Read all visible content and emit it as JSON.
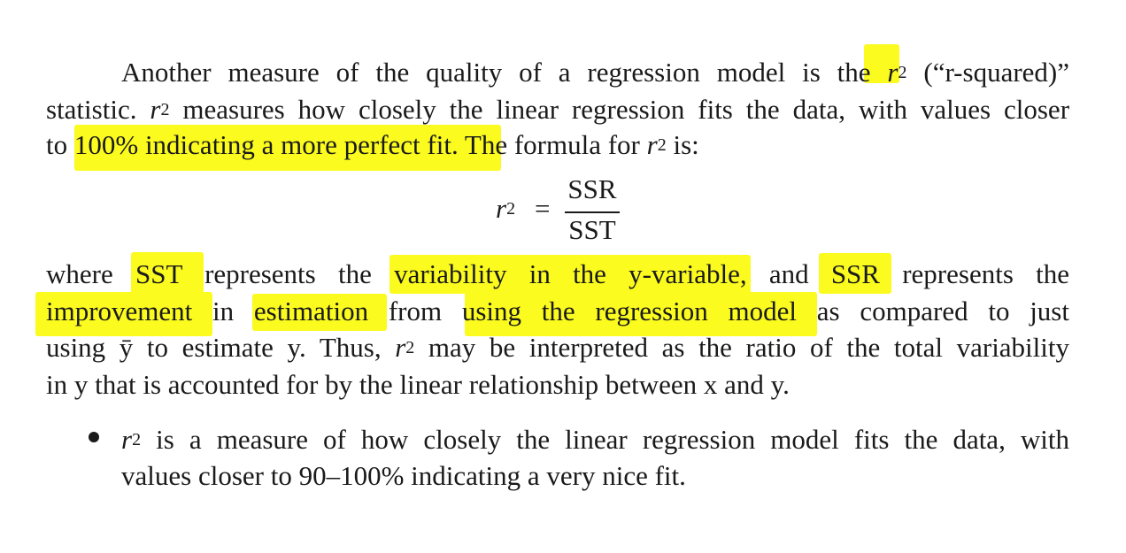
{
  "paragraph1": {
    "line1": {
      "before": "Another measure of the quality of a regression model is the",
      "r": "r",
      "sup": "2",
      "after": "(“r-squared)”"
    },
    "line2": {
      "prefix": "statistic.",
      "r": "r",
      "sup": "2",
      "rest": "measures how closely the linear regression fits the data, with values closer"
    },
    "line3": {
      "prefix": "to",
      "highlight": "100% indicating a more perfect fit",
      "mid": ". The formula for",
      "r": "r",
      "sup": "2",
      "suffix": "is:"
    }
  },
  "formula": {
    "lhs_r": "r",
    "lhs_sup": "2",
    "equals": "=",
    "numerator": "SSR",
    "denominator": "SST"
  },
  "paragraph2": {
    "line1": {
      "w1": "where",
      "hl1": "SST",
      "w2": "represents the",
      "hl2": "variability in the y-variable",
      "w3": ", and",
      "hl3": "SSR",
      "w4": "represents the"
    },
    "line2": {
      "hl1": "improvement",
      "w1": "in",
      "hl2": "estimation",
      "w2": "from",
      "hl3": "using the regression model",
      "w3": "as compared to just"
    },
    "line3": {
      "text_a": "using ȳ to estimate y. Thus,",
      "r": "r",
      "sup": "2",
      "text_b": "may be interpreted as the ratio of the total variability"
    },
    "line4": "in y that is accounted for by the linear relationship between x and y."
  },
  "bullet": {
    "line1": {
      "r": "r",
      "sup": "2",
      "text": "is a measure of how closely the linear regression model fits the data, with"
    },
    "line2": "values closer to 90–100% indicating a very nice fit."
  },
  "colors": {
    "highlight": "#fbfb1f",
    "text": "#1a1a1a",
    "background": "#ffffff"
  }
}
